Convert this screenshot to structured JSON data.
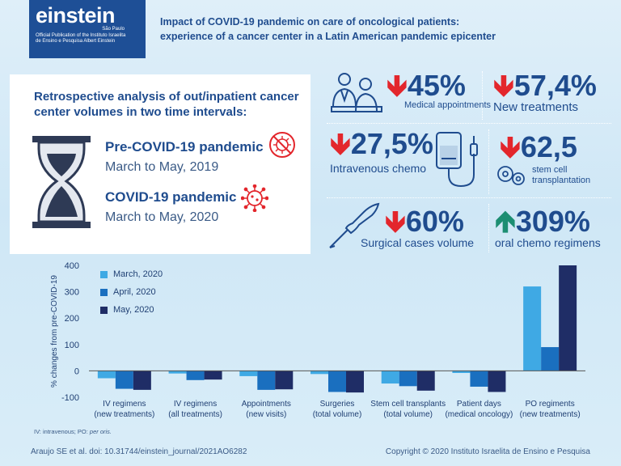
{
  "header": {
    "logo_word": "einstein",
    "logo_city": "São Paulo",
    "logo_publication_line1": "Official Publication of the Instituto Israelita",
    "logo_publication_line2": "de Ensino e Pesquisa Albert Einstein",
    "title_line1": "Impact of COVID-19 pandemic on care of oncological patients:",
    "title_line2": "experience of a cancer center in a Latin American pandemic epicenter"
  },
  "info": {
    "title_line1": "Retrospective analysis of out/inpatient cancer",
    "title_line2": "center volumes in two time intervals:",
    "pre_title": "Pre-COVID-19 pandemic",
    "pre_dates": "March to May, 2019",
    "covid_title": "COVID-19 pandemic",
    "covid_dates": "March to May, 2020"
  },
  "stats": [
    {
      "value": "45%",
      "label": "Medical appointments",
      "direction": "down",
      "icon": "doctor-patient-icon"
    },
    {
      "value": "57,4%",
      "label": "New treatments",
      "direction": "down",
      "icon": ""
    },
    {
      "value": "27,5%",
      "label": "Intravenous chemo",
      "direction": "down",
      "icon": "iv-bag-icon"
    },
    {
      "value": "62,5",
      "label_line1": "stem cell",
      "label_line2": "transplantation",
      "direction": "down",
      "icon": "stem-cell-icon"
    },
    {
      "value": "60%",
      "label": "Surgical cases volume",
      "direction": "down",
      "icon": "scalpel-hand-icon"
    },
    {
      "value": "309%",
      "label": "oral chemo regimens",
      "direction": "up",
      "icon": ""
    }
  ],
  "colors": {
    "march": "#3fa9e4",
    "april": "#1a6fbf",
    "may": "#1f2d66",
    "down_arrow": "#e3262c",
    "up_arrow": "#1c8e72",
    "brand": "#1e4f96"
  },
  "chart_data": {
    "type": "bar",
    "ylabel": "% changes from pre-COVID-19",
    "ylim": [
      -100,
      400
    ],
    "yticks": [
      -100,
      0,
      100,
      200,
      300,
      400
    ],
    "legend_position": "top-left",
    "categories": [
      {
        "line1": "IV regimens",
        "line2": "(new treatments)"
      },
      {
        "line1": "IV regimens",
        "line2": "(all treatments)"
      },
      {
        "line1": "Appointments",
        "line2": "(new visits)"
      },
      {
        "line1": "Surgeries",
        "line2": "(total volume)"
      },
      {
        "line1": "Stem cell transplants",
        "line2": "(total volume)"
      },
      {
        "line1": "Patient days",
        "line2": "(medical oncology)"
      },
      {
        "line1": "PO regiments",
        "line2": "(new treatments)"
      }
    ],
    "series": [
      {
        "name": "March, 2020",
        "values": [
          -28,
          -10,
          -20,
          -12,
          -48,
          -8,
          320
        ]
      },
      {
        "name": "April, 2020",
        "values": [
          -68,
          -35,
          -72,
          -80,
          -58,
          -60,
          90
        ]
      },
      {
        "name": "May, 2020",
        "values": [
          -72,
          -33,
          -70,
          -82,
          -75,
          -80,
          400
        ]
      }
    ]
  },
  "footnote": {
    "text": "IV: intravenous; PO: ",
    "italic": "per oris."
  },
  "footer": {
    "citation": "Araujo SE et al.   doi: 10.31744/einstein_journal/2021AO6282",
    "copyright": "Copyright © 2020 Instituto Israelita de Ensino e Pesquisa"
  }
}
